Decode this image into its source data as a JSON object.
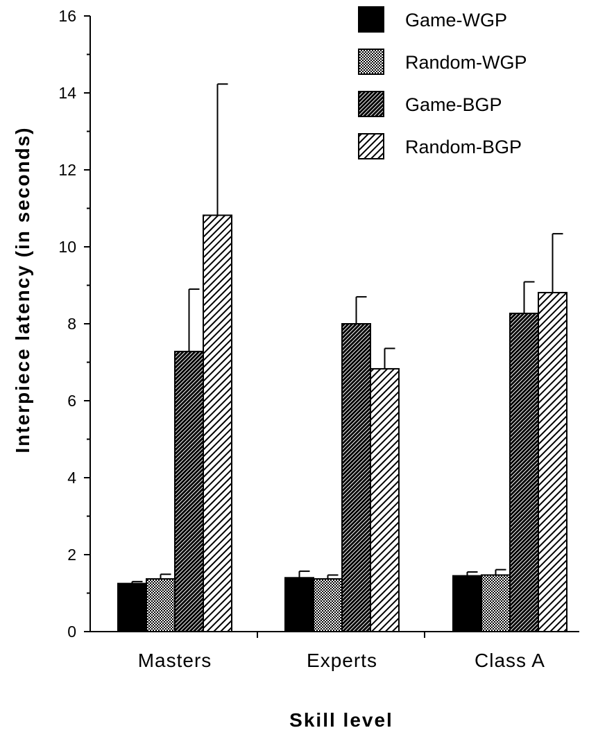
{
  "chart_data": {
    "type": "bar",
    "categories": [
      "Masters",
      "Experts",
      "Class A"
    ],
    "series": [
      {
        "name": "Game-WGP",
        "values": [
          1.25,
          1.4,
          1.45
        ],
        "errors": [
          0.05,
          0.17,
          0.1
        ],
        "pattern": "solid"
      },
      {
        "name": "Random-WGP",
        "values": [
          1.37,
          1.37,
          1.47
        ],
        "errors": [
          0.12,
          0.1,
          0.14
        ],
        "pattern": "dots"
      },
      {
        "name": "Game-BGP",
        "values": [
          7.28,
          8.0,
          8.27
        ],
        "errors": [
          1.62,
          0.7,
          0.82
        ],
        "pattern": "dense-diagonal"
      },
      {
        "name": "Random-BGP",
        "values": [
          10.82,
          6.83,
          8.81
        ],
        "errors": [
          3.41,
          0.53,
          1.53
        ],
        "pattern": "diagonal"
      }
    ],
    "xlabel": "Skill level",
    "ylabel": "Interpiece latency (in seconds)",
    "ylim": [
      0,
      16
    ],
    "yticks": [
      "0",
      "2",
      "4",
      "6",
      "8",
      "10",
      "12",
      "14",
      "16"
    ],
    "error_bars": true,
    "grid": false,
    "legend_position": "top-right",
    "colors": {
      "bar_fill": "#000000",
      "stroke": "#000000",
      "background": "#ffffff"
    }
  }
}
